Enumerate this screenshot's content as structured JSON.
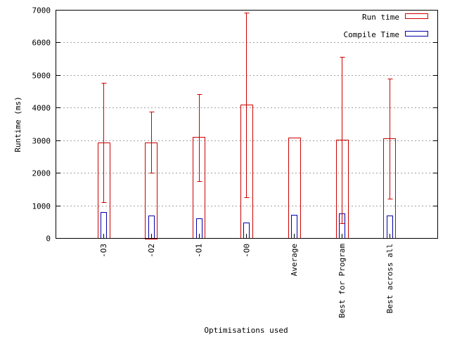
{
  "chart_data": {
    "type": "bar",
    "categories": [
      "-O3",
      "-O2",
      "-O1",
      "-O0",
      "Average",
      "Best for Program",
      "Best across all"
    ],
    "series": [
      {
        "name": "Run time",
        "values": [
          2920,
          2940,
          3100,
          4090,
          3080,
          3010,
          3050
        ],
        "error_low": [
          1090,
          2000,
          1740,
          1250,
          null,
          460,
          1200
        ],
        "error_high": [
          4770,
          3880,
          4420,
          6920,
          null,
          5560,
          4900
        ],
        "color": "#cc0000"
      },
      {
        "name": "Compile Time",
        "values": [
          790,
          690,
          600,
          470,
          720,
          750,
          690
        ],
        "color": "#0000aa"
      }
    ],
    "ylim": [
      0,
      7000
    ],
    "yticks": [
      "0",
      "1000",
      "2000",
      "3000",
      "4000",
      "5000",
      "6000",
      "7000"
    ],
    "xlabel": "Optimisations used",
    "ylabel": "Runtime (ms)",
    "grid": true,
    "legend_position": "top-right"
  }
}
